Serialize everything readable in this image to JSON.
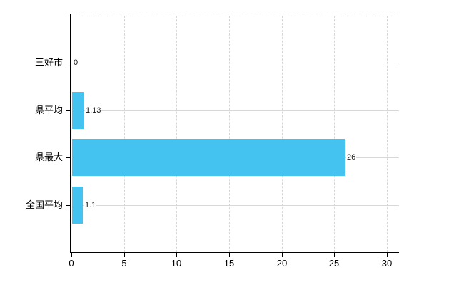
{
  "chart_data": {
    "type": "bar",
    "orientation": "horizontal",
    "title": "",
    "xlabel": "",
    "ylabel": "",
    "categories": [
      "三好市",
      "県平均",
      "県最大",
      "全国平均"
    ],
    "values": [
      0,
      1.13,
      26,
      1.1
    ],
    "value_labels": [
      "0",
      "1.13",
      "26",
      "1.1"
    ],
    "x_ticks": [
      0,
      5,
      10,
      15,
      20,
      25,
      30
    ],
    "x_tick_labels": [
      "0",
      "5",
      "10",
      "15",
      "20",
      "25",
      "30"
    ],
    "xlim": [
      0,
      30
    ],
    "grid": true,
    "legend": false,
    "bar_color": "#45c3f0",
    "grid_color": "#d6d6d6",
    "category_gridline_color": "#d8d8d8",
    "axis_color": "#000000",
    "text_color": "#000000",
    "background_color": "#ffffff"
  }
}
